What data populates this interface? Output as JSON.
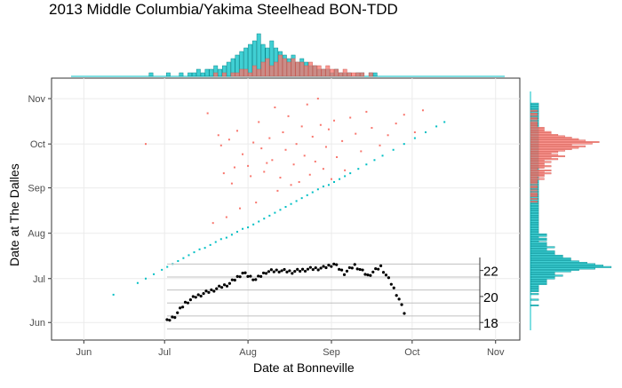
{
  "chart_data": {
    "type": "scatter",
    "title": "2013 Middle Columbia/Yakima Steelhead BON-TDD",
    "xlabel": "Date at Bonneville",
    "ylabel": "Date at The Dalles",
    "x_ticks": [
      "Jun",
      "Jul",
      "Aug",
      "Sep",
      "Oct",
      "Nov"
    ],
    "y_ticks": [
      "Jun",
      "Jul",
      "Aug",
      "Sep",
      "Oct",
      "Nov"
    ],
    "xlim": [
      "2013-05-20",
      "2013-11-10"
    ],
    "ylim": [
      "2013-05-20",
      "2013-11-15"
    ],
    "grid": true,
    "colors": {
      "group_a": "#F8766D",
      "group_b": "#00BFC4",
      "temperature": "#000000"
    },
    "series": [
      {
        "values_desc": "delayed passage",
        "points": [
          [
            "2013-07-17",
            "2013-10-22"
          ],
          [
            "2013-07-21",
            "2013-10-07"
          ],
          [
            "2013-07-22",
            "2013-09-30"
          ],
          [
            "2013-07-23",
            "2013-09-11"
          ],
          [
            "2013-07-25",
            "2013-10-04"
          ],
          [
            "2013-07-27",
            "2013-09-15"
          ],
          [
            "2013-07-28",
            "2013-10-10"
          ],
          [
            "2013-07-30",
            "2013-09-24"
          ],
          [
            "2013-08-01",
            "2013-09-16"
          ],
          [
            "2013-08-03",
            "2013-10-02"
          ],
          [
            "2013-08-05",
            "2013-10-16"
          ],
          [
            "2013-08-06",
            "2013-09-28"
          ],
          [
            "2013-08-07",
            "2013-09-12"
          ],
          [
            "2013-08-09",
            "2013-10-05"
          ],
          [
            "2013-08-10",
            "2013-09-20"
          ],
          [
            "2013-08-11",
            "2013-10-26"
          ],
          [
            "2013-08-13",
            "2013-09-08"
          ],
          [
            "2013-08-14",
            "2013-10-09"
          ],
          [
            "2013-08-15",
            "2013-09-27"
          ],
          [
            "2013-08-16",
            "2013-10-20"
          ],
          [
            "2013-08-18",
            "2013-09-17"
          ],
          [
            "2013-08-19",
            "2013-10-01"
          ],
          [
            "2013-08-20",
            "2013-09-05"
          ],
          [
            "2013-08-21",
            "2013-10-13"
          ],
          [
            "2013-08-22",
            "2013-09-23"
          ],
          [
            "2013-08-23",
            "2013-10-28"
          ],
          [
            "2013-08-24",
            "2013-09-10"
          ],
          [
            "2013-08-25",
            "2013-10-06"
          ],
          [
            "2013-08-26",
            "2013-09-19"
          ],
          [
            "2013-08-27",
            "2013-11-01"
          ],
          [
            "2013-08-28",
            "2013-10-14"
          ],
          [
            "2013-08-29",
            "2013-09-14"
          ],
          [
            "2013-08-30",
            "2013-09-29"
          ],
          [
            "2013-08-31",
            "2013-10-11"
          ],
          [
            "2013-09-01",
            "2013-09-07"
          ],
          [
            "2013-09-02",
            "2013-10-17"
          ],
          [
            "2013-09-03",
            "2013-09-22"
          ],
          [
            "2013-09-05",
            "2013-10-03"
          ],
          [
            "2013-09-06",
            "2013-09-13"
          ],
          [
            "2013-09-08",
            "2013-10-19"
          ],
          [
            "2013-09-10",
            "2013-10-08"
          ],
          [
            "2013-09-12",
            "2013-09-26"
          ],
          [
            "2013-09-14",
            "2013-10-23"
          ],
          [
            "2013-09-16",
            "2013-10-12"
          ],
          [
            "2013-09-19",
            "2013-09-30"
          ],
          [
            "2013-09-22",
            "2013-10-07"
          ],
          [
            "2013-09-25",
            "2013-10-15"
          ],
          [
            "2013-09-28",
            "2013-10-21"
          ],
          [
            "2013-10-02",
            "2013-10-09"
          ],
          [
            "2013-10-05",
            "2013-10-24"
          ],
          [
            "2013-06-24",
            "2013-10-01"
          ],
          [
            "2013-07-19",
            "2013-08-08"
          ],
          [
            "2013-07-24",
            "2013-08-12"
          ],
          [
            "2013-07-29",
            "2013-08-18"
          ],
          [
            "2013-08-04",
            "2013-08-22"
          ],
          [
            "2013-08-12",
            "2013-08-30"
          ],
          [
            "2013-08-17",
            "2013-09-03"
          ],
          [
            "2013-07-26",
            "2013-09-04"
          ],
          [
            "2013-08-02",
            "2013-09-09"
          ],
          [
            "2013-08-08",
            "2013-09-18"
          ]
        ]
      },
      {
        "values_desc": "direct passage",
        "points": [
          [
            "2013-06-12",
            "2013-06-20"
          ],
          [
            "2013-06-21",
            "2013-06-28"
          ],
          [
            "2013-06-24",
            "2013-07-01"
          ],
          [
            "2013-06-27",
            "2013-07-04"
          ],
          [
            "2013-06-30",
            "2013-07-07"
          ],
          [
            "2013-07-02",
            "2013-07-09"
          ],
          [
            "2013-07-04",
            "2013-07-11"
          ],
          [
            "2013-07-06",
            "2013-07-13"
          ],
          [
            "2013-07-08",
            "2013-07-15"
          ],
          [
            "2013-07-10",
            "2013-07-17"
          ],
          [
            "2013-07-12",
            "2013-07-19"
          ],
          [
            "2013-07-14",
            "2013-07-21"
          ],
          [
            "2013-07-16",
            "2013-07-22"
          ],
          [
            "2013-07-18",
            "2013-07-24"
          ],
          [
            "2013-07-20",
            "2013-07-26"
          ],
          [
            "2013-07-22",
            "2013-07-28"
          ],
          [
            "2013-07-24",
            "2013-07-29"
          ],
          [
            "2013-07-26",
            "2013-07-31"
          ],
          [
            "2013-07-28",
            "2013-08-02"
          ],
          [
            "2013-07-30",
            "2013-08-04"
          ],
          [
            "2013-08-01",
            "2013-08-05"
          ],
          [
            "2013-08-03",
            "2013-08-07"
          ],
          [
            "2013-08-05",
            "2013-08-09"
          ],
          [
            "2013-08-07",
            "2013-08-11"
          ],
          [
            "2013-08-09",
            "2013-08-13"
          ],
          [
            "2013-08-11",
            "2013-08-15"
          ],
          [
            "2013-08-13",
            "2013-08-17"
          ],
          [
            "2013-08-15",
            "2013-08-19"
          ],
          [
            "2013-08-17",
            "2013-08-21"
          ],
          [
            "2013-08-19",
            "2013-08-23"
          ],
          [
            "2013-08-21",
            "2013-08-25"
          ],
          [
            "2013-08-23",
            "2013-08-27"
          ],
          [
            "2013-08-25",
            "2013-08-29"
          ],
          [
            "2013-08-27",
            "2013-08-31"
          ],
          [
            "2013-08-29",
            "2013-09-02"
          ],
          [
            "2013-08-31",
            "2013-09-03"
          ],
          [
            "2013-09-02",
            "2013-09-05"
          ],
          [
            "2013-09-04",
            "2013-09-07"
          ],
          [
            "2013-09-06",
            "2013-09-09"
          ],
          [
            "2013-09-08",
            "2013-09-11"
          ],
          [
            "2013-09-11",
            "2013-09-14"
          ],
          [
            "2013-09-14",
            "2013-09-17"
          ],
          [
            "2013-09-17",
            "2013-09-20"
          ],
          [
            "2013-09-20",
            "2013-09-23"
          ],
          [
            "2013-09-24",
            "2013-09-27"
          ],
          [
            "2013-09-28",
            "2013-10-01"
          ],
          [
            "2013-10-02",
            "2013-10-05"
          ],
          [
            "2013-10-06",
            "2013-10-09"
          ],
          [
            "2013-10-10",
            "2013-10-13"
          ],
          [
            "2013-10-13",
            "2013-10-16"
          ]
        ]
      }
    ],
    "temperature": {
      "x": [
        "2013-07-01",
        "2013-07-04",
        "2013-07-08",
        "2013-07-12",
        "2013-07-16",
        "2013-07-20",
        "2013-07-25",
        "2013-07-30",
        "2013-08-04",
        "2013-08-08",
        "2013-08-13",
        "2013-08-18",
        "2013-08-24",
        "2013-08-30",
        "2013-09-03",
        "2013-09-07",
        "2013-09-11",
        "2013-09-16",
        "2013-09-21",
        "2013-09-25",
        "2013-09-28",
        "2013-09-30"
      ],
      "y": [
        18.1,
        18.5,
        19.5,
        20.0,
        20.3,
        20.6,
        21.0,
        21.8,
        21.3,
        21.9,
        22.0,
        21.9,
        22.1,
        22.2,
        22.5,
        21.8,
        22.4,
        21.6,
        22.3,
        21.0,
        19.8,
        18.7
      ],
      "ticks": [
        "18",
        "20",
        "22"
      ]
    },
    "top_histogram": {
      "desc": "marginal counts at Bonneville",
      "group_a": [
        0,
        0,
        0,
        0,
        0,
        0,
        0,
        0,
        0,
        0,
        0,
        0,
        0,
        0,
        0,
        0,
        0,
        0,
        0,
        0,
        0,
        0,
        0,
        0,
        0,
        0,
        0,
        0,
        0,
        0,
        0,
        0,
        0,
        1,
        0,
        1,
        0,
        1,
        1,
        2,
        2,
        1,
        3,
        2,
        4,
        5,
        3,
        4,
        6,
        5,
        4,
        5,
        4,
        4,
        3,
        4,
        3,
        3,
        2,
        3,
        2,
        2,
        1,
        2,
        1,
        1,
        1,
        1,
        0,
        1,
        0,
        0,
        0,
        0,
        0,
        0,
        0,
        0,
        0,
        0
      ],
      "group_b": [
        0,
        0,
        0,
        0,
        0,
        0,
        0,
        0,
        0,
        0,
        0,
        0,
        0,
        0,
        0,
        0,
        0,
        0,
        1,
        0,
        0,
        0,
        1,
        0,
        0,
        1,
        0,
        1,
        1,
        2,
        1,
        2,
        2,
        3,
        2,
        3,
        4,
        5,
        6,
        7,
        8,
        9,
        10,
        12,
        9,
        8,
        10,
        8,
        7,
        6,
        5,
        6,
        4,
        5,
        4,
        3,
        3,
        2,
        2,
        2,
        1,
        2,
        1,
        1,
        1,
        0,
        1,
        1,
        0,
        1,
        1,
        0,
        0,
        0,
        0,
        0,
        0,
        0,
        0,
        0
      ]
    },
    "right_histogram": {
      "desc": "marginal counts at The Dalles",
      "group_a": [
        0,
        0,
        0,
        0,
        0,
        0,
        0,
        0,
        0,
        0,
        0,
        0,
        0,
        0,
        0,
        0,
        0,
        0,
        0,
        0,
        0,
        0,
        0,
        0,
        0,
        0,
        0,
        0,
        0,
        0,
        0,
        0,
        0,
        0,
        0,
        0,
        0,
        0,
        0,
        0,
        0,
        0,
        0,
        0,
        0,
        0,
        0,
        0,
        0,
        0,
        0,
        0,
        0,
        0,
        0,
        0,
        0,
        0,
        0,
        0,
        0,
        0,
        0,
        0,
        0,
        0,
        0,
        0,
        0,
        0,
        0,
        0,
        0,
        0,
        0,
        0,
        0,
        0,
        0,
        0,
        0,
        0,
        0,
        0,
        0,
        0,
        0,
        0,
        0,
        0,
        1,
        0,
        1,
        0,
        1,
        1,
        1,
        0,
        1,
        0,
        1,
        1,
        0,
        1,
        1,
        1,
        2,
        1,
        2,
        2,
        3,
        2,
        3,
        1,
        2,
        3,
        2,
        2,
        3,
        2,
        4,
        3,
        5,
        4,
        3,
        4,
        5,
        6,
        7,
        8,
        6,
        9,
        10,
        8,
        7,
        6,
        5,
        4,
        3,
        3,
        2,
        2,
        2,
        1,
        1,
        1,
        1,
        0,
        1,
        1,
        0,
        1,
        1,
        0,
        1,
        0,
        0,
        0,
        0,
        0,
        0,
        0,
        0,
        0,
        0,
        0,
        0,
        0
      ],
      "group_b": [
        0,
        0,
        0,
        0,
        0,
        0,
        0,
        0,
        0,
        0,
        0,
        0,
        0,
        0,
        0,
        0,
        0,
        1,
        0,
        0,
        0,
        1,
        0,
        0,
        0,
        1,
        0,
        1,
        1,
        1,
        1,
        1,
        2,
        2,
        2,
        2,
        3,
        3,
        4,
        3,
        3,
        5,
        6,
        8,
        10,
        9,
        8,
        7,
        6,
        5,
        5,
        4,
        4,
        3,
        3,
        3,
        2,
        2,
        3,
        2,
        2,
        2,
        1,
        2,
        2,
        1,
        2,
        2,
        1,
        1,
        1,
        1,
        1,
        1,
        1,
        1,
        1,
        1,
        1,
        1,
        1,
        1,
        1,
        1,
        1,
        1,
        1,
        1,
        1,
        1,
        1,
        1,
        1,
        1,
        1,
        1,
        1,
        1,
        1,
        1,
        1,
        1,
        1,
        1,
        1,
        1,
        1,
        1,
        1,
        1,
        1,
        1,
        1,
        1,
        1,
        1,
        1,
        1,
        1,
        1,
        1,
        1,
        1,
        1,
        1,
        1,
        1,
        1,
        1,
        1,
        1,
        1,
        1,
        1,
        1,
        1,
        1,
        1,
        1,
        1,
        1,
        1,
        1,
        1,
        1,
        1,
        1,
        1,
        1,
        1,
        1,
        1,
        1,
        1,
        1,
        1,
        1,
        1,
        1,
        1,
        0,
        0,
        0,
        0,
        0,
        0,
        0,
        0,
        0,
        0,
        0,
        0,
        0
      ]
    }
  }
}
